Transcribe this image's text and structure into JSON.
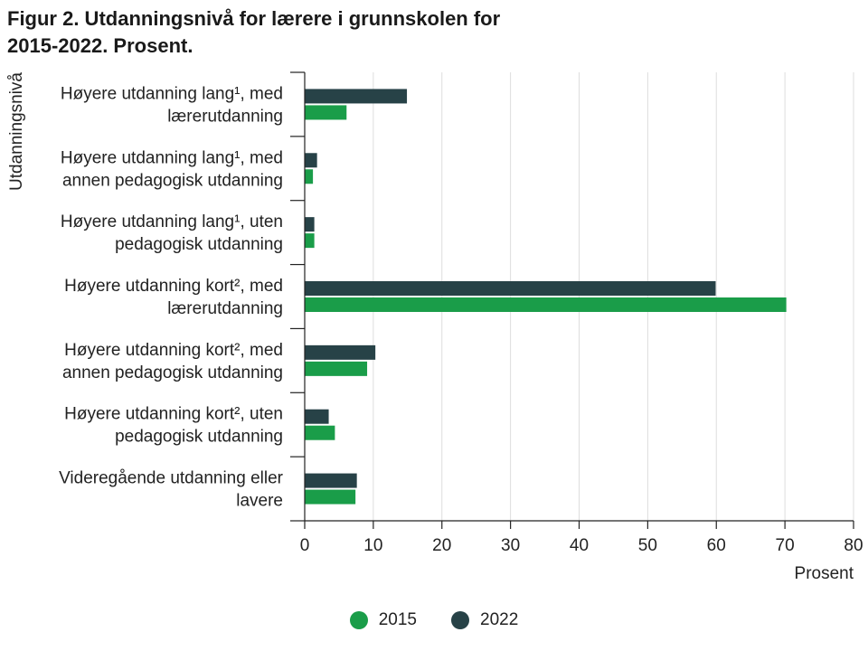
{
  "title_lines": [
    "Figur 2. Utdanningsnivå for lærere i grunnskolen for",
    "2015-2022. Prosent."
  ],
  "colors": {
    "s2015": "#1a9d49",
    "s2022": "#274247",
    "grid": "#dddddd",
    "axis": "#222222"
  },
  "chart_data": {
    "type": "bar",
    "orientation": "horizontal",
    "title": "Figur 2. Utdanningsnivå for lærere i grunnskolen for 2015-2022. Prosent.",
    "xlabel": "Prosent",
    "ylabel": "Utdanningsnivå",
    "xlim": [
      0,
      80
    ],
    "xticks": [
      0,
      10,
      20,
      30,
      40,
      50,
      60,
      70,
      80
    ],
    "grid": true,
    "legend_position": "bottom",
    "categories": [
      [
        "Høyere utdanning lang¹, med",
        "lærerutdanning"
      ],
      [
        "Høyere utdanning lang¹, med",
        "annen pedagogisk utdanning"
      ],
      [
        "Høyere utdanning lang¹, uten",
        "pedagogisk utdanning"
      ],
      [
        "Høyere utdanning kort², med",
        "lærerutdanning"
      ],
      [
        "Høyere utdanning kort², med",
        "annen pedagogisk utdanning"
      ],
      [
        "Høyere utdanning kort², uten",
        "pedagogisk utdanning"
      ],
      [
        "Videregående utdanning eller",
        "lavere"
      ]
    ],
    "series": [
      {
        "name": "2022",
        "color": "#274247",
        "values": [
          14.9,
          1.8,
          1.4,
          59.9,
          10.3,
          3.5,
          7.6
        ]
      },
      {
        "name": "2015",
        "color": "#1a9d49",
        "values": [
          6.1,
          1.2,
          1.4,
          70.2,
          9.1,
          4.4,
          7.4
        ]
      }
    ]
  },
  "legend": [
    {
      "label": "2015",
      "color": "#1a9d49"
    },
    {
      "label": "2022",
      "color": "#274247"
    }
  ]
}
